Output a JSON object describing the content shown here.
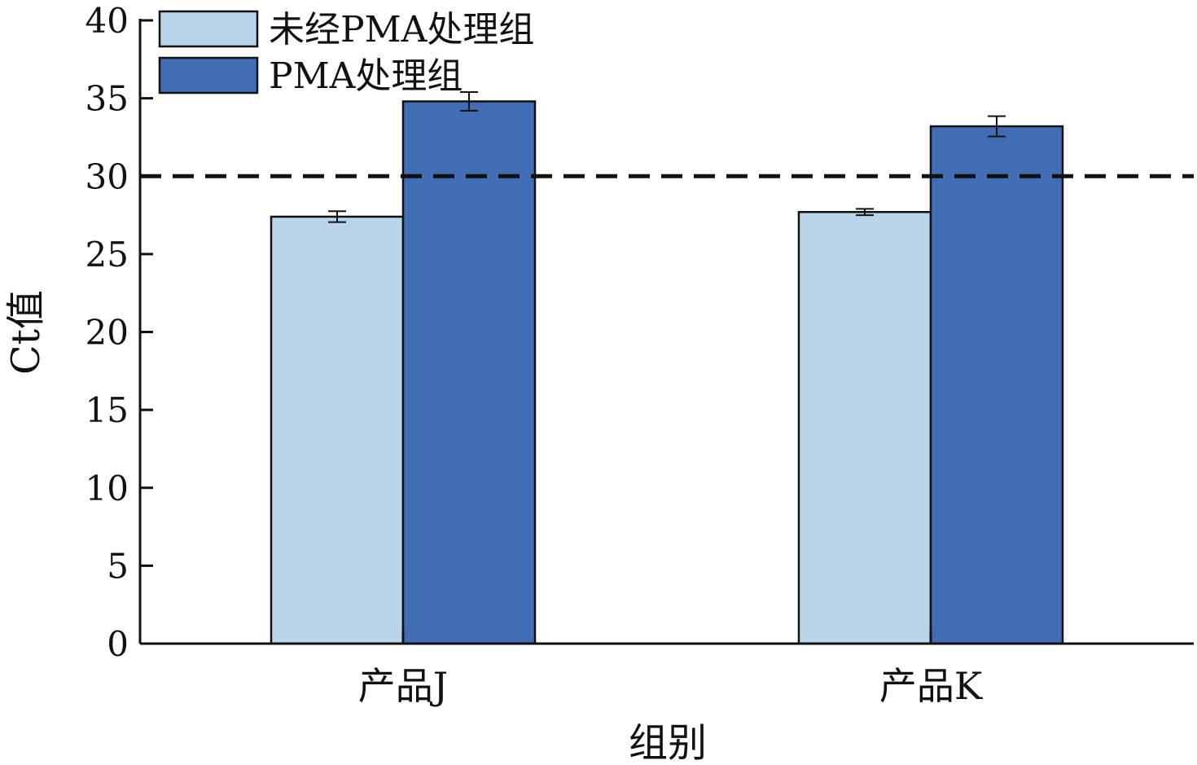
{
  "chart_data": {
    "type": "bar",
    "title": "",
    "xlabel": "组别",
    "ylabel": "Ct值",
    "ylim": [
      0,
      40
    ],
    "yticks": [
      0,
      5,
      10,
      15,
      20,
      25,
      30,
      35,
      40
    ],
    "categories": [
      "产品J",
      "产品K"
    ],
    "series": [
      {
        "name": "未经PMA处理组",
        "values": [
          27.4,
          27.7
        ],
        "errors": [
          0.35,
          0.2
        ],
        "color": "#bad4e9"
      },
      {
        "name": "PMA处理组",
        "values": [
          34.8,
          33.2
        ],
        "errors": [
          0.6,
          0.65
        ],
        "color": "#416db5"
      }
    ],
    "reference_line": {
      "y": 30,
      "style": "dashed"
    },
    "legend": "top-left",
    "grid": false
  }
}
